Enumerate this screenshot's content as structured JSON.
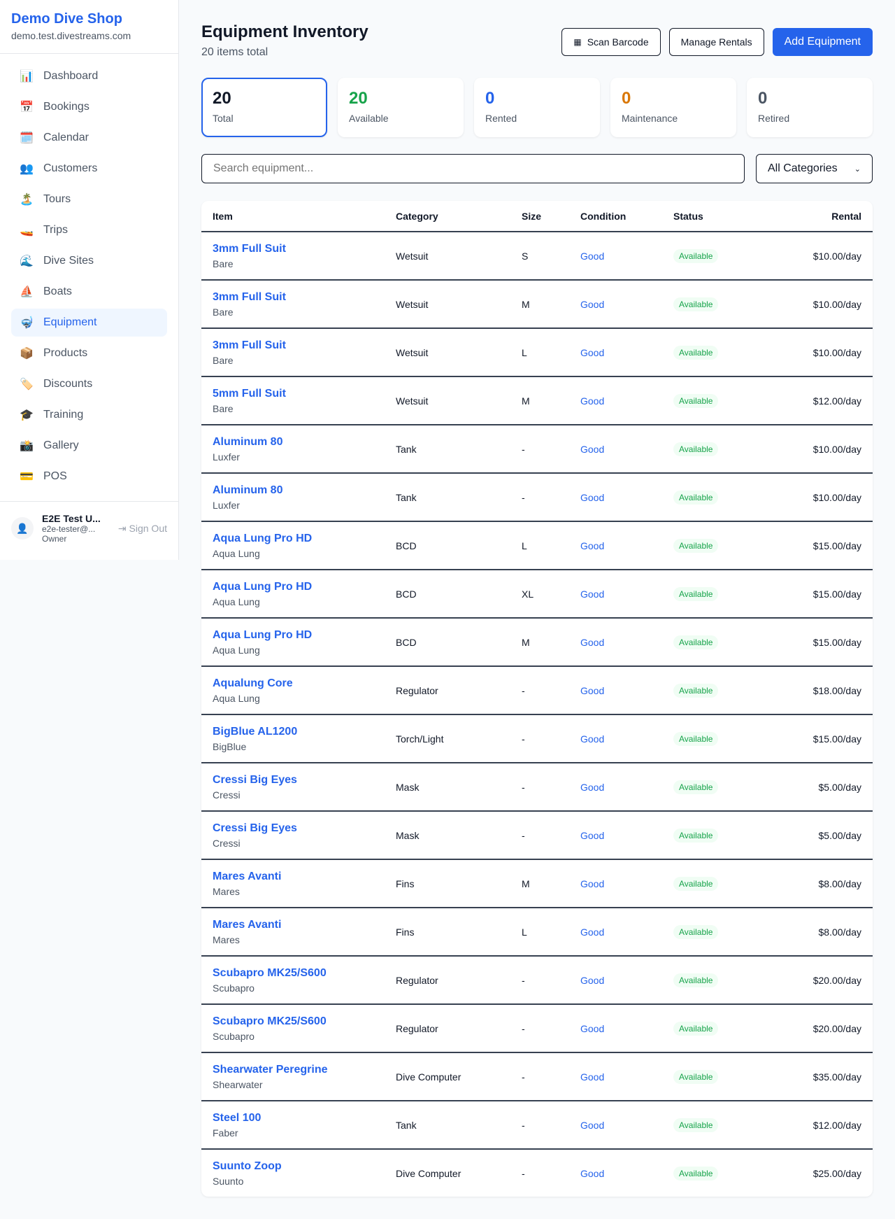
{
  "sidebar": {
    "shop_name": "Demo Dive Shop",
    "domain": "demo.test.divestreams.com",
    "items": [
      {
        "label": "Dashboard",
        "icon": "📊"
      },
      {
        "label": "Bookings",
        "icon": "📅"
      },
      {
        "label": "Calendar",
        "icon": "🗓️"
      },
      {
        "label": "Customers",
        "icon": "👥"
      },
      {
        "label": "Tours",
        "icon": "🏝️"
      },
      {
        "label": "Trips",
        "icon": "🚤"
      },
      {
        "label": "Dive Sites",
        "icon": "🌊"
      },
      {
        "label": "Boats",
        "icon": "⛵"
      },
      {
        "label": "Equipment",
        "icon": "🤿"
      },
      {
        "label": "Products",
        "icon": "📦"
      },
      {
        "label": "Discounts",
        "icon": "🏷️"
      },
      {
        "label": "Training",
        "icon": "🎓"
      },
      {
        "label": "Gallery",
        "icon": "📸"
      },
      {
        "label": "POS",
        "icon": "💳"
      }
    ],
    "active": "Equipment",
    "user": {
      "name": "E2E Test U...",
      "email": "e2e-tester@...",
      "role": "Owner",
      "sign_out": "Sign Out"
    }
  },
  "header": {
    "title": "Equipment Inventory",
    "subtitle": "20 items total",
    "scan": "Scan Barcode",
    "manage": "Manage Rentals",
    "add": "Add Equipment"
  },
  "stats": [
    {
      "value": "20",
      "label": "Total",
      "color": "#111827"
    },
    {
      "value": "20",
      "label": "Available",
      "color": "#16a34a"
    },
    {
      "value": "0",
      "label": "Rented",
      "color": "#2563eb"
    },
    {
      "value": "0",
      "label": "Maintenance",
      "color": "#d97706"
    },
    {
      "value": "0",
      "label": "Retired",
      "color": "#4b5563"
    }
  ],
  "filters": {
    "search_placeholder": "Search equipment...",
    "category": "All Categories"
  },
  "table": {
    "headers": [
      "Item",
      "Category",
      "Size",
      "Condition",
      "Status",
      "Rental"
    ],
    "rows": [
      [
        "3mm Full Suit",
        "Bare",
        "Wetsuit",
        "S",
        "Good",
        "Available",
        "$10.00/day"
      ],
      [
        "3mm Full Suit",
        "Bare",
        "Wetsuit",
        "M",
        "Good",
        "Available",
        "$10.00/day"
      ],
      [
        "3mm Full Suit",
        "Bare",
        "Wetsuit",
        "L",
        "Good",
        "Available",
        "$10.00/day"
      ],
      [
        "5mm Full Suit",
        "Bare",
        "Wetsuit",
        "M",
        "Good",
        "Available",
        "$12.00/day"
      ],
      [
        "Aluminum 80",
        "Luxfer",
        "Tank",
        "-",
        "Good",
        "Available",
        "$10.00/day"
      ],
      [
        "Aluminum 80",
        "Luxfer",
        "Tank",
        "-",
        "Good",
        "Available",
        "$10.00/day"
      ],
      [
        "Aqua Lung Pro HD",
        "Aqua Lung",
        "BCD",
        "L",
        "Good",
        "Available",
        "$15.00/day"
      ],
      [
        "Aqua Lung Pro HD",
        "Aqua Lung",
        "BCD",
        "XL",
        "Good",
        "Available",
        "$15.00/day"
      ],
      [
        "Aqua Lung Pro HD",
        "Aqua Lung",
        "BCD",
        "M",
        "Good",
        "Available",
        "$15.00/day"
      ],
      [
        "Aqualung Core",
        "Aqua Lung",
        "Regulator",
        "-",
        "Good",
        "Available",
        "$18.00/day"
      ],
      [
        "BigBlue AL1200",
        "BigBlue",
        "Torch/Light",
        "-",
        "Good",
        "Available",
        "$15.00/day"
      ],
      [
        "Cressi Big Eyes",
        "Cressi",
        "Mask",
        "-",
        "Good",
        "Available",
        "$5.00/day"
      ],
      [
        "Cressi Big Eyes",
        "Cressi",
        "Mask",
        "-",
        "Good",
        "Available",
        "$5.00/day"
      ],
      [
        "Mares Avanti",
        "Mares",
        "Fins",
        "M",
        "Good",
        "Available",
        "$8.00/day"
      ],
      [
        "Mares Avanti",
        "Mares",
        "Fins",
        "L",
        "Good",
        "Available",
        "$8.00/day"
      ],
      [
        "Scubapro MK25/S600",
        "Scubapro",
        "Regulator",
        "-",
        "Good",
        "Available",
        "$20.00/day"
      ],
      [
        "Scubapro MK25/S600",
        "Scubapro",
        "Regulator",
        "-",
        "Good",
        "Available",
        "$20.00/day"
      ],
      [
        "Shearwater Peregrine",
        "Shearwater",
        "Dive Computer",
        "-",
        "Good",
        "Available",
        "$35.00/day"
      ],
      [
        "Steel 100",
        "Faber",
        "Tank",
        "-",
        "Good",
        "Available",
        "$12.00/day"
      ],
      [
        "Suunto Zoop",
        "Suunto",
        "Dive Computer",
        "-",
        "Good",
        "Available",
        "$25.00/day"
      ]
    ]
  }
}
